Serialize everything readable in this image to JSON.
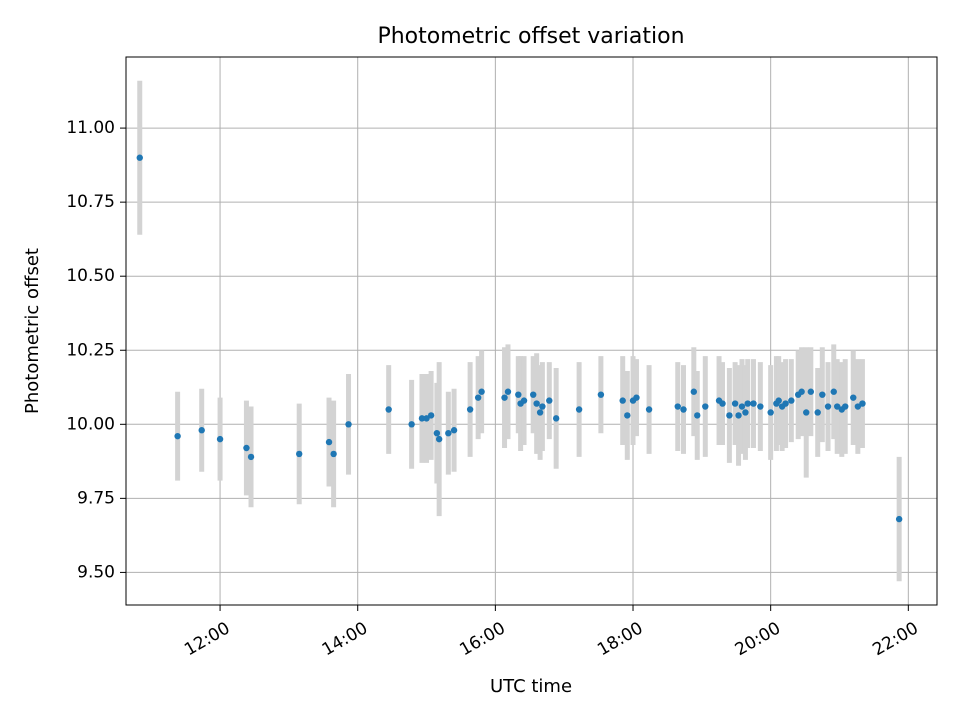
{
  "chart_data": {
    "type": "scatter",
    "title": "Photometric offset variation",
    "xlabel": "UTC time",
    "ylabel": "Photometric offset",
    "x_ticks": [
      "12:00",
      "14:00",
      "16:00",
      "18:00",
      "20:00",
      "22:00"
    ],
    "y_ticks": [
      "9.50",
      "9.75",
      "10.00",
      "10.25",
      "10.50",
      "10.75",
      "11.00"
    ],
    "xlim": [
      "10:38",
      "22:25"
    ],
    "ylim": [
      9.39,
      11.24
    ],
    "grid": true,
    "colors": {
      "points": "#1f77b4",
      "error_bars": "#d3d3d3",
      "grid": "#b0b0b0"
    },
    "series": [
      {
        "x": [
          "10:50",
          "11:23",
          "11:44",
          "12:00",
          "12:23",
          "12:27",
          "13:09",
          "13:35",
          "13:39",
          "13:52",
          "14:27",
          "14:47",
          "14:56",
          "15:00",
          "15:04",
          "15:09",
          "15:11",
          "15:19",
          "15:24",
          "15:38",
          "15:45",
          "15:48",
          "16:08",
          "16:11",
          "16:20",
          "16:22",
          "16:25",
          "16:33",
          "16:36",
          "16:39",
          "16:41",
          "16:47",
          "16:53",
          "17:13",
          "17:32",
          "17:51",
          "17:55",
          "18:00",
          "18:03",
          "18:14",
          "18:39",
          "18:44",
          "18:53",
          "18:56",
          "19:03",
          "19:15",
          "19:18",
          "19:24",
          "19:29",
          "19:32",
          "19:35",
          "19:38",
          "19:40",
          "19:45",
          "19:51",
          "20:00",
          "20:05",
          "20:07",
          "20:10",
          "20:13",
          "20:18",
          "20:24",
          "20:27",
          "20:31",
          "20:35",
          "20:41",
          "20:45",
          "20:50",
          "20:55",
          "20:58",
          "21:02",
          "21:05",
          "21:12",
          "21:16",
          "21:20",
          "21:52"
        ],
        "y": [
          10.9,
          9.96,
          9.98,
          9.95,
          9.92,
          9.89,
          9.9,
          9.94,
          9.9,
          10.0,
          10.05,
          10.0,
          10.02,
          10.02,
          10.03,
          9.97,
          9.95,
          9.97,
          9.98,
          10.05,
          10.09,
          10.11,
          10.09,
          10.11,
          10.1,
          10.07,
          10.08,
          10.1,
          10.07,
          10.04,
          10.06,
          10.08,
          10.02,
          10.05,
          10.1,
          10.08,
          10.03,
          10.08,
          10.09,
          10.05,
          10.06,
          10.05,
          10.11,
          10.03,
          10.06,
          10.08,
          10.07,
          10.03,
          10.07,
          10.03,
          10.06,
          10.04,
          10.07,
          10.07,
          10.06,
          10.04,
          10.07,
          10.08,
          10.06,
          10.07,
          10.08,
          10.1,
          10.11,
          10.04,
          10.11,
          10.04,
          10.1,
          10.06,
          10.11,
          10.06,
          10.05,
          10.06,
          10.09,
          10.06,
          10.07,
          9.68
        ],
        "err": [
          0.26,
          0.15,
          0.14,
          0.14,
          0.16,
          0.17,
          0.17,
          0.15,
          0.18,
          0.17,
          0.15,
          0.15,
          0.15,
          0.15,
          0.15,
          0.17,
          0.26,
          0.14,
          0.14,
          0.16,
          0.14,
          0.14,
          0.17,
          0.16,
          0.13,
          0.16,
          0.15,
          0.13,
          0.17,
          0.16,
          0.15,
          0.13,
          0.17,
          0.16,
          0.13,
          0.15,
          0.15,
          0.15,
          0.13,
          0.15,
          0.15,
          0.15,
          0.15,
          0.15,
          0.17,
          0.15,
          0.14,
          0.16,
          0.14,
          0.17,
          0.16,
          0.16,
          0.15,
          0.15,
          0.15,
          0.16,
          0.16,
          0.15,
          0.15,
          0.15,
          0.14,
          0.15,
          0.15,
          0.22,
          0.15,
          0.15,
          0.16,
          0.15,
          0.16,
          0.16,
          0.16,
          0.16,
          0.16,
          0.16,
          0.15,
          0.21
        ]
      }
    ]
  }
}
